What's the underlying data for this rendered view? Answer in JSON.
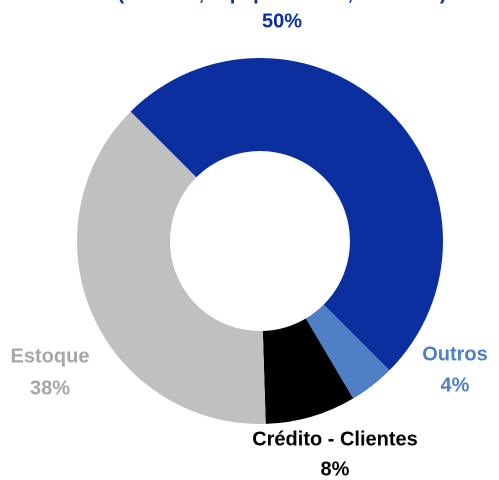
{
  "chart_data": {
    "type": "donut",
    "categories": [
      "(Imóveis, Equipamentos, Veículos)",
      "Outros",
      "Crédito - Clientes",
      "Estoque"
    ],
    "values": [
      50,
      4,
      8,
      38
    ],
    "value_labels": [
      "50%",
      "4%",
      "8%",
      "38%"
    ],
    "colors": [
      "#0b2f9f",
      "#4f80c6",
      "#000000",
      "#c0c0c0"
    ],
    "label_colors": [
      "#0b2f9f",
      "#4f80c6",
      "#000000",
      "#a6a6a6"
    ],
    "start_angle": 315
  }
}
